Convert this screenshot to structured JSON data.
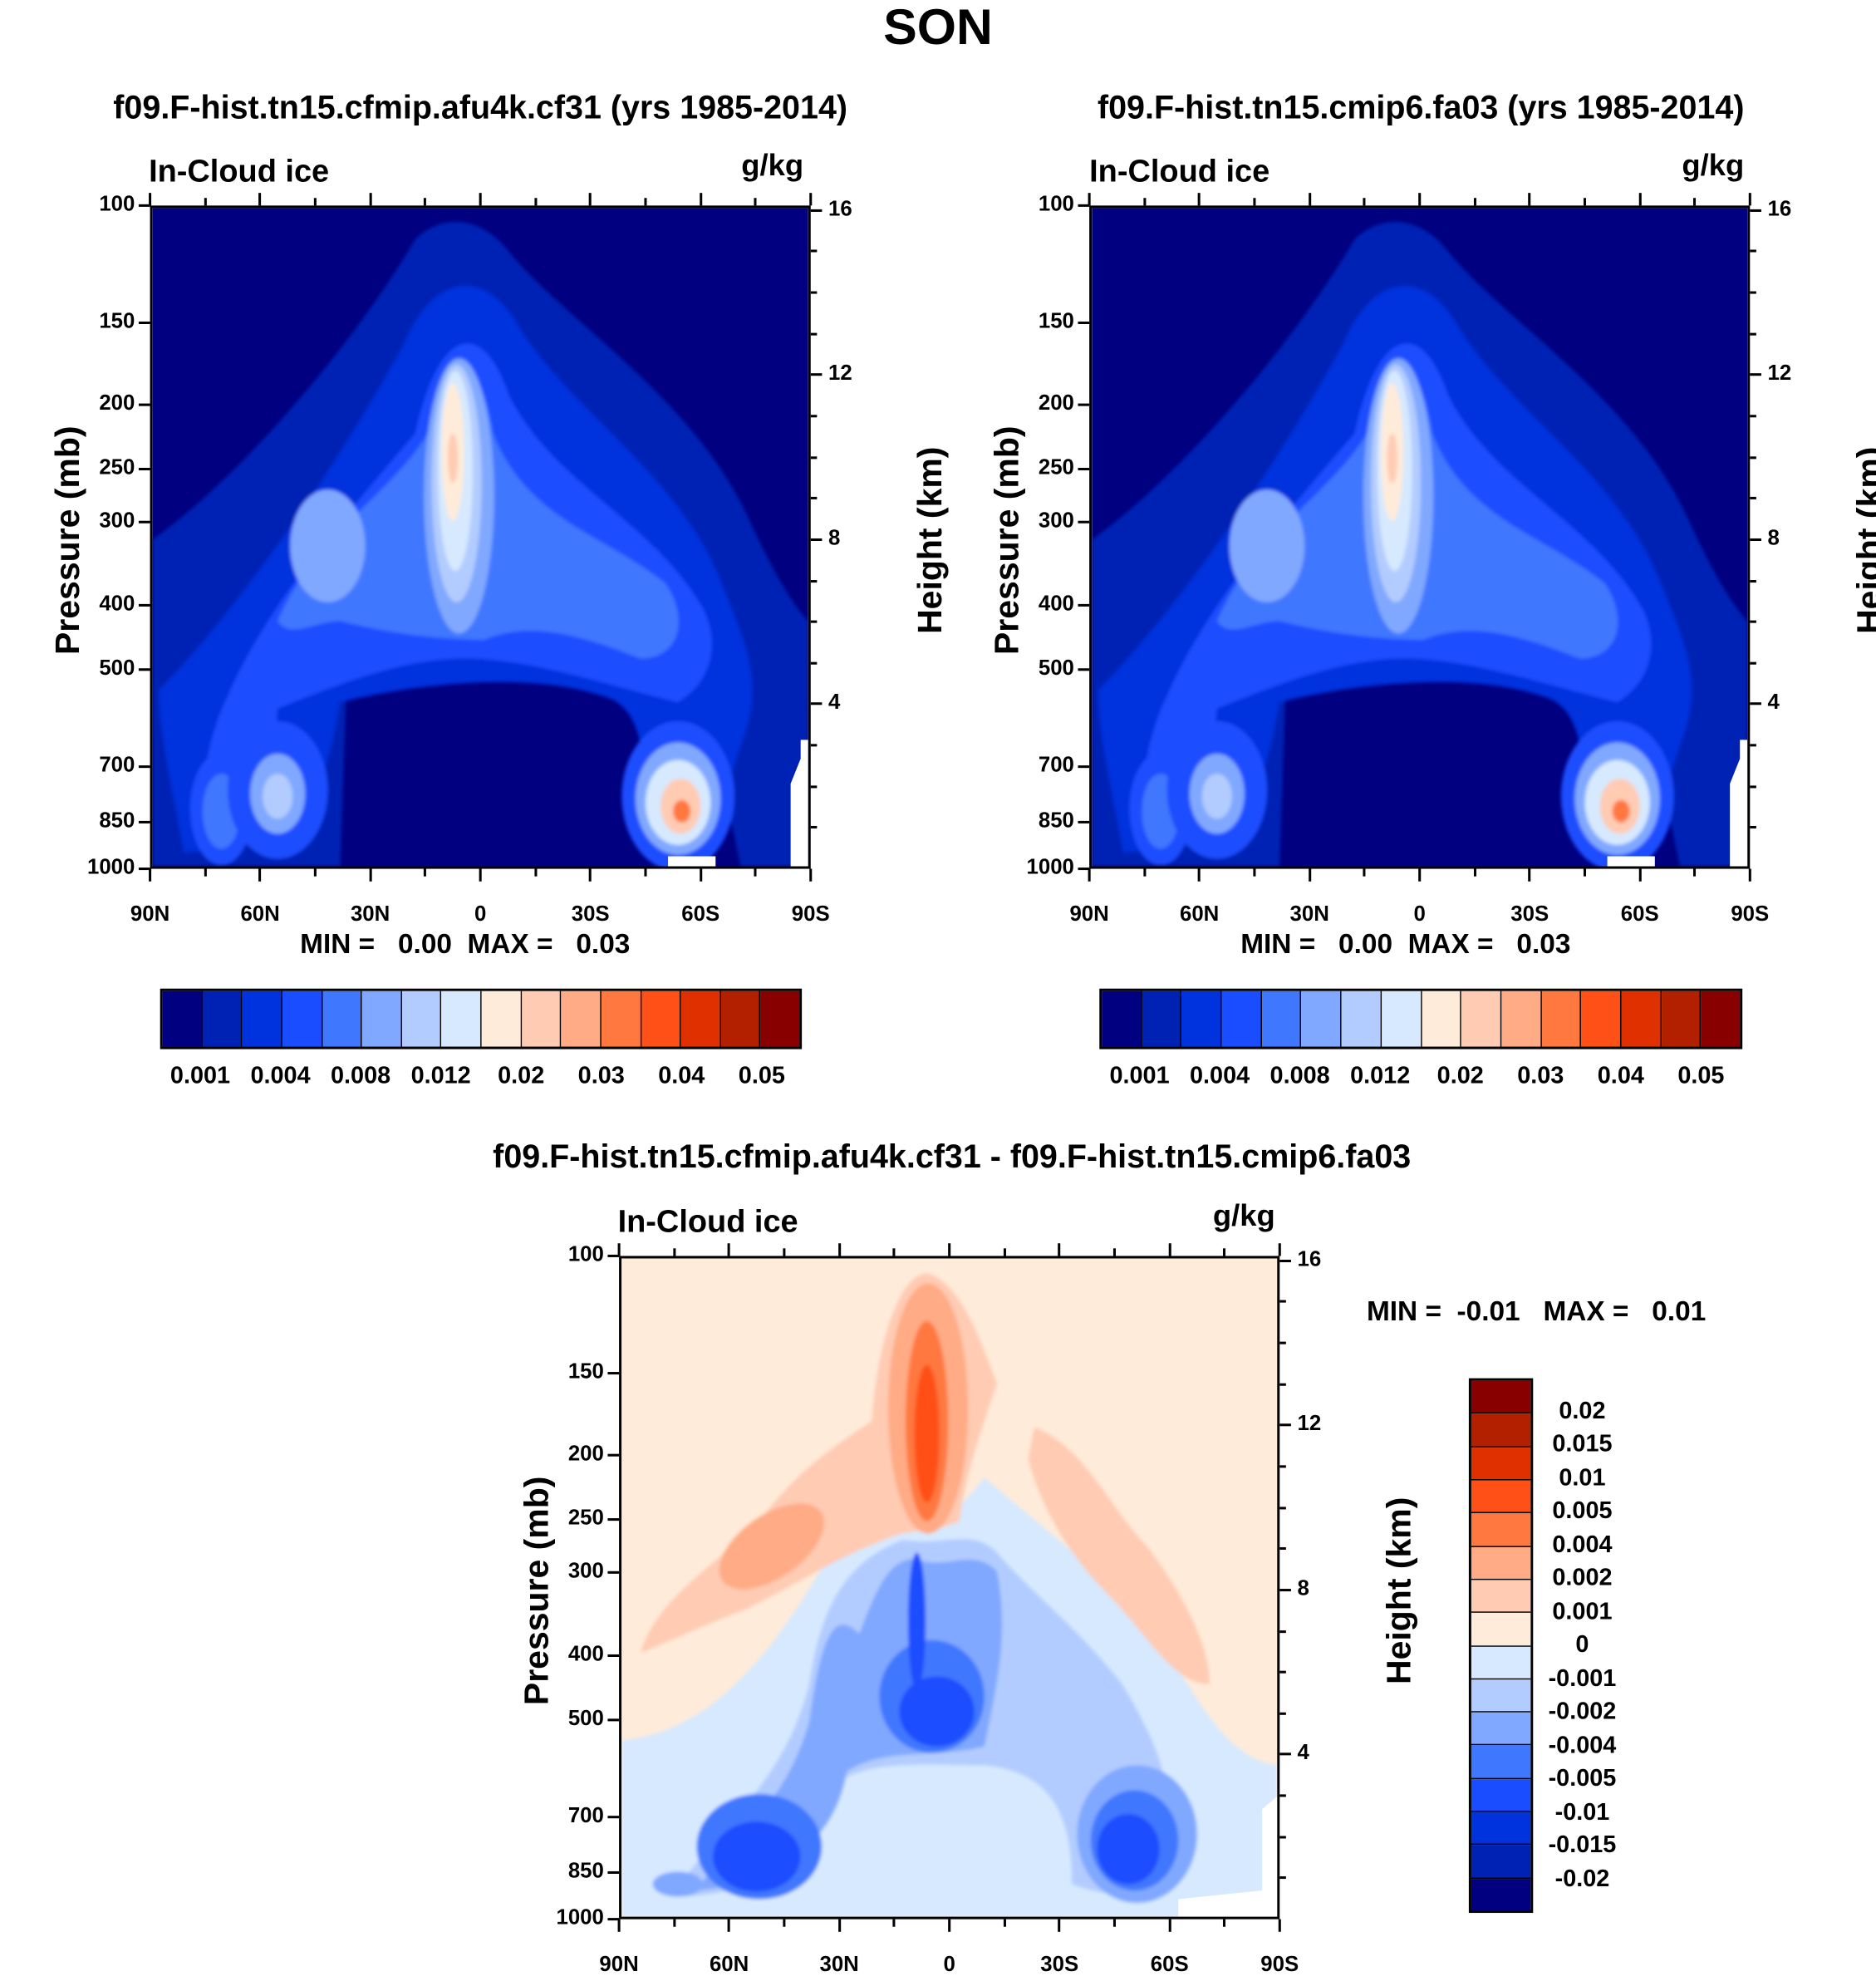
{
  "title": "SON",
  "chart_data": [
    {
      "type": "heatmap",
      "subtype": "filled-contour latitude-pressure cross section",
      "title": "f09.F-hist.tn15.cfmip.afu4k.cf31 (yrs 1985-2014)",
      "variable": "In-Cloud ice",
      "units": "g/kg",
      "xlabel": "",
      "ylabel": "Pressure (mb)",
      "y2label": "Height (km)",
      "x_ticks": [
        "90N",
        "60N",
        "30N",
        "0",
        "30S",
        "60S",
        "90S"
      ],
      "y_ticks": [
        100,
        150,
        200,
        250,
        300,
        400,
        500,
        700,
        850,
        1000
      ],
      "y2_ticks": [
        4,
        8,
        12,
        16
      ],
      "ylim": [
        1000,
        100
      ],
      "min_label": "MIN =",
      "min_value": "0.00",
      "max_label": "MAX =",
      "max_value": "0.03",
      "colorbar_labels": [
        "0.001",
        "0.004",
        "0.008",
        "0.012",
        "0.02",
        "0.03",
        "0.04",
        "0.05"
      ]
    },
    {
      "type": "heatmap",
      "subtype": "filled-contour latitude-pressure cross section",
      "title": "f09.F-hist.tn15.cmip6.fa03 (yrs 1985-2014)",
      "variable": "In-Cloud ice",
      "units": "g/kg",
      "xlabel": "",
      "ylabel": "Pressure (mb)",
      "y2label": "Height (km)",
      "x_ticks": [
        "90N",
        "60N",
        "30N",
        "0",
        "30S",
        "60S",
        "90S"
      ],
      "y_ticks": [
        100,
        150,
        200,
        250,
        300,
        400,
        500,
        700,
        850,
        1000
      ],
      "y2_ticks": [
        4,
        8,
        12,
        16
      ],
      "ylim": [
        1000,
        100
      ],
      "min_label": "MIN =",
      "min_value": "0.00",
      "max_label": "MAX =",
      "max_value": "0.03",
      "colorbar_labels": [
        "0.001",
        "0.004",
        "0.008",
        "0.012",
        "0.02",
        "0.03",
        "0.04",
        "0.05"
      ]
    },
    {
      "type": "heatmap",
      "subtype": "filled-contour difference",
      "title": "f09.F-hist.tn15.cfmip.afu4k.cf31 - f09.F-hist.tn15.cmip6.fa03",
      "variable": "In-Cloud ice",
      "units": "g/kg",
      "xlabel": "",
      "ylabel": "Pressure (mb)",
      "y2label": "Height (km)",
      "x_ticks": [
        "90N",
        "60N",
        "30N",
        "0",
        "30S",
        "60S",
        "90S"
      ],
      "y_ticks": [
        100,
        150,
        200,
        250,
        300,
        400,
        500,
        700,
        850,
        1000
      ],
      "y2_ticks": [
        4,
        8,
        12,
        16
      ],
      "ylim": [
        1000,
        100
      ],
      "min_label": "MIN =",
      "min_value": "-0.01",
      "max_label": "MAX =",
      "max_value": "0.01",
      "colorbar_labels": [
        "0.02",
        "0.015",
        "0.01",
        "0.005",
        "0.004",
        "0.002",
        "0.001",
        "0",
        "-0.001",
        "-0.002",
        "-0.004",
        "-0.005",
        "-0.01",
        "-0.015",
        "-0.02"
      ]
    }
  ],
  "colors": [
    "#000080",
    "#0022b4",
    "#0033dd",
    "#1a4dff",
    "#4077ff",
    "#80a8ff",
    "#b3ccff",
    "#d6e9ff",
    "#ffebd9",
    "#ffcbb3",
    "#ffab85",
    "#ff7840",
    "#ff5018",
    "#e03000",
    "#b32000",
    "#880000"
  ]
}
